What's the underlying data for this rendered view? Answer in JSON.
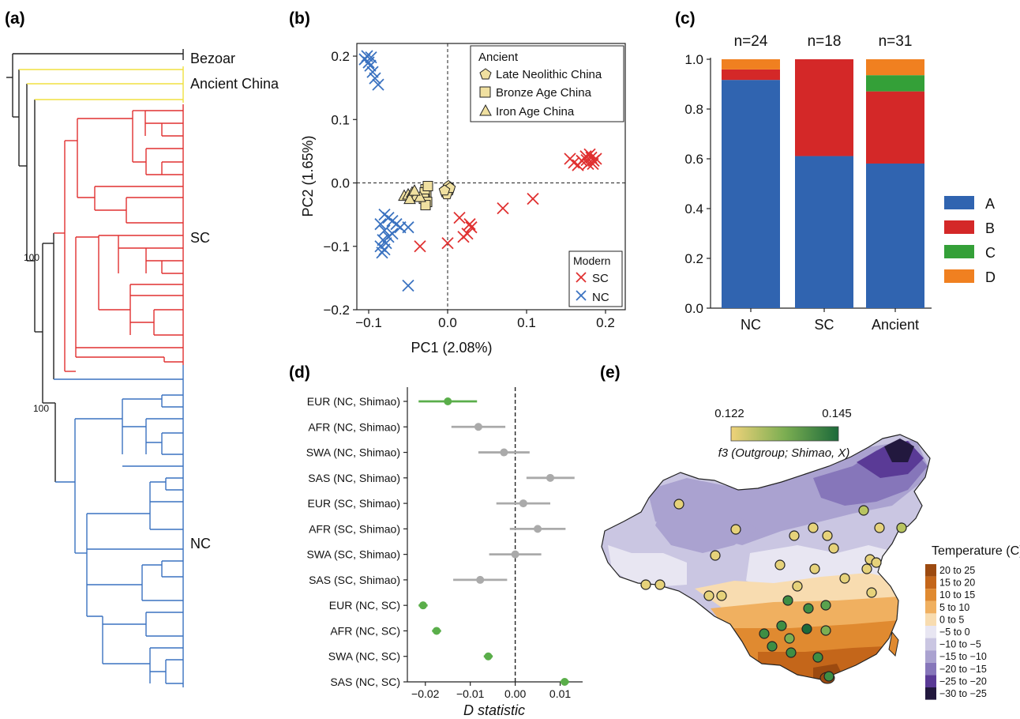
{
  "panels": {
    "a": {
      "label": "(a)",
      "clade_labels": [
        "Bezoar",
        "Ancient China",
        "SC",
        "NC"
      ],
      "bootstrap_labels": [
        "100",
        "100"
      ],
      "colors": {
        "ancient": "#f0e040",
        "sc": "#e03030",
        "nc": "#3a72c0",
        "base": "#222222"
      }
    },
    "b": {
      "label": "(b)",
      "legend_ancient_title": "Ancient",
      "legend_ancient_items": [
        "Late Neolithic China",
        "Bronze Age China",
        "Iron Age China"
      ],
      "legend_modern_title": "Modern",
      "legend_modern_items": [
        "SC",
        "NC"
      ]
    },
    "c": {
      "label": "(c)",
      "n_labels": [
        "n=24",
        "n=18",
        "n=31"
      ]
    },
    "d": {
      "label": "(d)"
    },
    "e": {
      "label": "(e)",
      "colorbar_min": "0.122",
      "colorbar_max": "0.145",
      "colorbar_title": "f3 (Outgroup; Shimao, X)",
      "temp_title": "Temperature (C)",
      "temp_bins": [
        {
          "label": "20 to 25",
          "color": "#9c4a10"
        },
        {
          "label": "15 to 20",
          "color": "#c4661a"
        },
        {
          "label": "10 to 15",
          "color": "#e08a30"
        },
        {
          "label": "5 to 10",
          "color": "#f0b060"
        },
        {
          "label": "0 to 5",
          "color": "#f8dcb0"
        },
        {
          "label": "−5 to 0",
          "color": "#e8e6f2"
        },
        {
          "label": "−10 to −5",
          "color": "#cac6e2"
        },
        {
          "label": "−15 to −10",
          "color": "#aaa2d0"
        },
        {
          "label": "−20 to −15",
          "color": "#8676ba"
        },
        {
          "label": "−25 to −20",
          "color": "#5a3a96"
        },
        {
          "label": "−30 to −25",
          "color": "#22183e"
        }
      ]
    }
  },
  "chart_data": [
    {
      "panel": "b",
      "type": "scatter",
      "xlabel": "PC1 (2.08%)",
      "ylabel": "PC2 (1.65%)",
      "xlim": [
        -0.115,
        0.225
      ],
      "ylim": [
        -0.2,
        0.22
      ],
      "xticks": [
        -0.1,
        0.0,
        0.1,
        0.2
      ],
      "xtick_labels": [
        "−0.1",
        "0.0",
        "0.1",
        "0.2"
      ],
      "yticks": [
        -0.2,
        -0.1,
        0.0,
        0.1,
        0.2
      ],
      "ytick_labels": [
        "−0.2",
        "−0.1",
        "0.0",
        "0.1",
        "0.2"
      ],
      "reference_lines": {
        "x": 0,
        "y": 0
      },
      "legend_position": "top-right and bottom-right",
      "series": [
        {
          "name": "SC",
          "marker": "x",
          "color": "#e03030",
          "points": [
            [
              0.155,
              0.038
            ],
            [
              0.16,
              0.032
            ],
            [
              0.165,
              0.028
            ],
            [
              0.17,
              0.035
            ],
            [
              0.175,
              0.042
            ],
            [
              0.178,
              0.03
            ],
            [
              0.18,
              0.045
            ],
            [
              0.182,
              0.04
            ],
            [
              0.185,
              0.035
            ],
            [
              0.188,
              0.038
            ],
            [
              0.176,
              0.036
            ],
            [
              0.184,
              0.03
            ],
            [
              0.108,
              -0.025
            ],
            [
              0.07,
              -0.04
            ],
            [
              0.03,
              -0.07
            ],
            [
              0.025,
              -0.08
            ],
            [
              0.028,
              -0.065
            ],
            [
              0.015,
              -0.055
            ],
            [
              0.02,
              -0.085
            ],
            [
              0.0,
              -0.095
            ],
            [
              -0.035,
              -0.1
            ]
          ]
        },
        {
          "name": "NC",
          "marker": "x",
          "color": "#3a72c0",
          "points": [
            [
              -0.105,
              0.195
            ],
            [
              -0.1,
              0.19
            ],
            [
              -0.102,
              0.2
            ],
            [
              -0.098,
              0.185
            ],
            [
              -0.095,
              0.175
            ],
            [
              -0.092,
              0.165
            ],
            [
              -0.088,
              0.155
            ],
            [
              -0.097,
              0.198
            ],
            [
              -0.08,
              -0.05
            ],
            [
              -0.075,
              -0.055
            ],
            [
              -0.07,
              -0.06
            ],
            [
              -0.065,
              -0.065
            ],
            [
              -0.06,
              -0.07
            ],
            [
              -0.085,
              -0.065
            ],
            [
              -0.08,
              -0.075
            ],
            [
              -0.07,
              -0.08
            ],
            [
              -0.05,
              -0.07
            ],
            [
              -0.085,
              -0.1
            ],
            [
              -0.082,
              -0.09
            ],
            [
              -0.078,
              -0.095
            ],
            [
              -0.083,
              -0.11
            ],
            [
              -0.08,
              -0.105
            ],
            [
              -0.075,
              -0.085
            ],
            [
              -0.05,
              -0.162
            ]
          ]
        },
        {
          "name": "Late Neolithic China",
          "marker": "pentagon",
          "color": "#f0e0a0",
          "points": [
            [
              -0.002,
              -0.01
            ],
            [
              0.002,
              -0.012
            ],
            [
              -0.003,
              -0.015
            ],
            [
              0.001,
              -0.005
            ],
            [
              -0.001,
              -0.018
            ],
            [
              0.003,
              -0.008
            ],
            [
              -0.004,
              -0.012
            ]
          ]
        },
        {
          "name": "Bronze Age China",
          "marker": "square",
          "color": "#f0e0a0",
          "points": [
            [
              -0.028,
              -0.01
            ],
            [
              -0.027,
              -0.02
            ],
            [
              -0.029,
              -0.015
            ],
            [
              -0.03,
              -0.025
            ],
            [
              -0.026,
              -0.03
            ],
            [
              -0.025,
              -0.005
            ],
            [
              -0.028,
              -0.035
            ]
          ]
        },
        {
          "name": "Iron Age China",
          "marker": "triangle",
          "color": "#f0e0a0",
          "points": [
            [
              -0.055,
              -0.02
            ],
            [
              -0.05,
              -0.018
            ],
            [
              -0.045,
              -0.015
            ],
            [
              -0.04,
              -0.02
            ],
            [
              -0.035,
              -0.022
            ],
            [
              -0.048,
              -0.025
            ],
            [
              -0.042,
              -0.012
            ]
          ]
        }
      ]
    },
    {
      "panel": "c",
      "type": "bar",
      "stacked": true,
      "categories": [
        "NC",
        "SC",
        "Ancient"
      ],
      "ylim": [
        0,
        1.0
      ],
      "yticks": [
        0.0,
        0.2,
        0.4,
        0.6,
        0.8,
        1.0
      ],
      "ytick_labels": [
        "0.0",
        "0.2",
        "0.4",
        "0.6",
        "0.8",
        "1.0"
      ],
      "legend_position": "right",
      "series": [
        {
          "name": "A",
          "color": "#3064b0",
          "values": [
            0.917,
            0.611,
            0.581
          ]
        },
        {
          "name": "B",
          "color": "#d42828",
          "values": [
            0.042,
            0.389,
            0.29
          ]
        },
        {
          "name": "C",
          "color": "#34a038",
          "values": [
            0.0,
            0.0,
            0.065
          ]
        },
        {
          "name": "D",
          "color": "#f08020",
          "values": [
            0.041,
            0.0,
            0.064
          ]
        }
      ]
    },
    {
      "panel": "d",
      "type": "scatter",
      "subtype": "errorbar",
      "xlabel": "D statistic",
      "xlim": [
        -0.024,
        0.015
      ],
      "xticks": [
        -0.02,
        -0.01,
        0.0,
        0.01
      ],
      "xtick_labels": [
        "−0.02",
        "−0.01",
        "0.00",
        "0.01"
      ],
      "reference_lines": {
        "x": 0
      },
      "rows": [
        {
          "label": "EUR (NC, Shimao)",
          "d": -0.015,
          "lo": -0.0215,
          "hi": -0.0085,
          "color": "#5aae4a"
        },
        {
          "label": "AFR (NC, Shimao)",
          "d": -0.0082,
          "lo": -0.0142,
          "hi": -0.0022,
          "color": "#aaaaaa"
        },
        {
          "label": "SWA (NC, Shimao)",
          "d": -0.0025,
          "lo": -0.0082,
          "hi": 0.0032,
          "color": "#aaaaaa"
        },
        {
          "label": "SAS (NC, Shimao)",
          "d": 0.0078,
          "lo": 0.0025,
          "hi": 0.0132,
          "color": "#aaaaaa"
        },
        {
          "label": "EUR (SC, Shimao)",
          "d": 0.0018,
          "lo": -0.0042,
          "hi": 0.0078,
          "color": "#aaaaaa"
        },
        {
          "label": "AFR (SC, Shimao)",
          "d": 0.005,
          "lo": -0.0012,
          "hi": 0.0112,
          "color": "#aaaaaa"
        },
        {
          "label": "SWA (SC, Shimao)",
          "d": 0.0,
          "lo": -0.0058,
          "hi": 0.0058,
          "color": "#aaaaaa"
        },
        {
          "label": "SAS (SC, Shimao)",
          "d": -0.0078,
          "lo": -0.0138,
          "hi": -0.0018,
          "color": "#aaaaaa"
        },
        {
          "label": "EUR (NC, SC)",
          "d": -0.0205,
          "lo": -0.0215,
          "hi": -0.0195,
          "color": "#5aae4a"
        },
        {
          "label": "AFR (NC, SC)",
          "d": -0.0175,
          "lo": -0.0185,
          "hi": -0.0165,
          "color": "#5aae4a"
        },
        {
          "label": "SWA (NC, SC)",
          "d": -0.006,
          "lo": -0.007,
          "hi": -0.005,
          "color": "#5aae4a"
        },
        {
          "label": "SAS (NC, SC)",
          "d": 0.011,
          "lo": 0.01,
          "hi": 0.012,
          "color": "#5aae4a"
        }
      ]
    }
  ]
}
